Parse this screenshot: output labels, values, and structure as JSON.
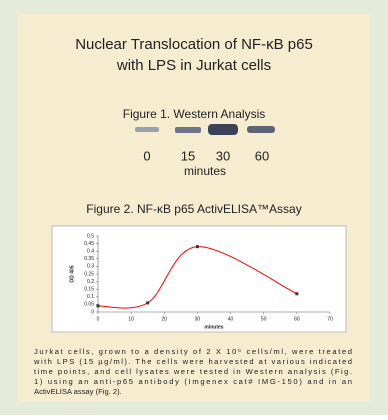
{
  "header": {
    "title_lines": [
      "Nuclear Translocation of NF-κB p65",
      "with LPS in Jurkat cells"
    ]
  },
  "figure1": {
    "title": "Figure 1. Western Analysis",
    "lane_labels": [
      "0",
      "15",
      "30",
      "60"
    ],
    "axis_label": "minutes"
  },
  "figure2": {
    "title": "Figure 2. NF-κB p65 ActivELISA™Assay"
  },
  "chart_data": {
    "type": "line",
    "x_label": "minutes",
    "y_label": "OD 405",
    "x": [
      0,
      15,
      30,
      60
    ],
    "series": [
      {
        "color": "#ff0000",
        "values": [
          0.04,
          0.06,
          0.43,
          0.12
        ]
      }
    ],
    "xlim": [
      0,
      70
    ],
    "xticks": [
      0,
      10,
      20,
      30,
      40,
      50,
      60,
      70
    ],
    "ylim": [
      0,
      0.5
    ],
    "yticks": [
      0,
      0.05,
      0.1,
      0.15,
      0.2,
      0.25,
      0.3,
      0.35,
      0.4,
      0.45,
      0.5
    ]
  },
  "caption": {
    "lines": [
      "Jurkat cells, grown to a density of 2 X 10⁶ cells/ml, were treated",
      "with LPS (15 µg/ml). The cells were harvested at various indicated",
      "time points, and cell lysates were tested in Western analysis (Fig.",
      "1) using an anti-p65 antibody (Imgenex cat# IMG-150) and in an",
      "ActivELISA  assay (Fig. 2)."
    ]
  }
}
